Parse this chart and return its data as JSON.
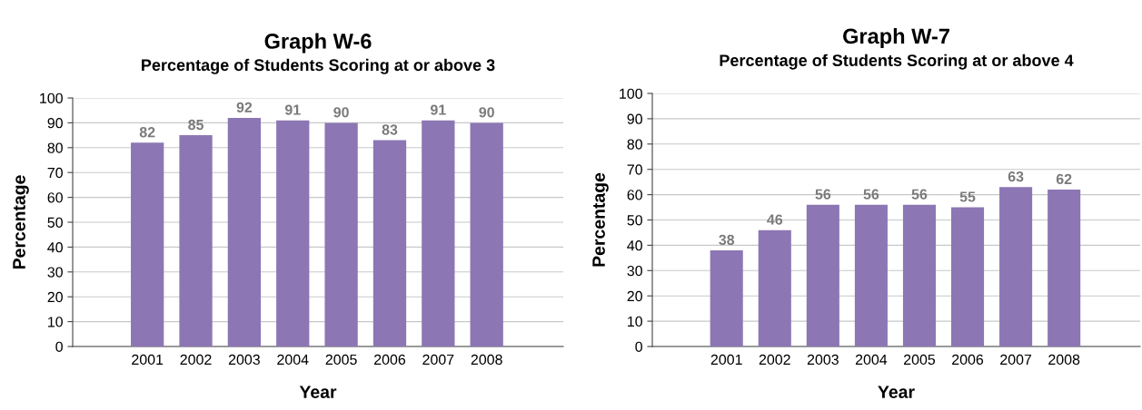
{
  "chart_data": [
    {
      "type": "bar",
      "title": "Graph W-6",
      "subtitle": "Percentage of Students Scoring at or above 3",
      "xlabel": "Year",
      "ylabel": "Percentage",
      "categories": [
        "2001",
        "2002",
        "2003",
        "2004",
        "2005",
        "2006",
        "2007",
        "2008"
      ],
      "values": [
        82,
        85,
        92,
        91,
        90,
        83,
        91,
        90
      ],
      "color": "#8c76b3",
      "ylim": [
        0,
        100
      ],
      "yticks": [
        0,
        10,
        20,
        30,
        40,
        50,
        60,
        70,
        80,
        90,
        100
      ],
      "grid": "y",
      "data_labels": true
    },
    {
      "type": "bar",
      "title": "Graph W-7",
      "subtitle": "Percentage of Students Scoring at or above 4",
      "xlabel": "Year",
      "ylabel": "Percentage",
      "categories": [
        "2001",
        "2002",
        "2003",
        "2004",
        "2005",
        "2006",
        "2007",
        "2008"
      ],
      "values": [
        38,
        46,
        56,
        56,
        56,
        55,
        63,
        62
      ],
      "color": "#8c76b3",
      "ylim": [
        0,
        100
      ],
      "yticks": [
        0,
        10,
        20,
        30,
        40,
        50,
        60,
        70,
        80,
        90,
        100
      ],
      "grid": "y",
      "data_labels": true
    }
  ]
}
